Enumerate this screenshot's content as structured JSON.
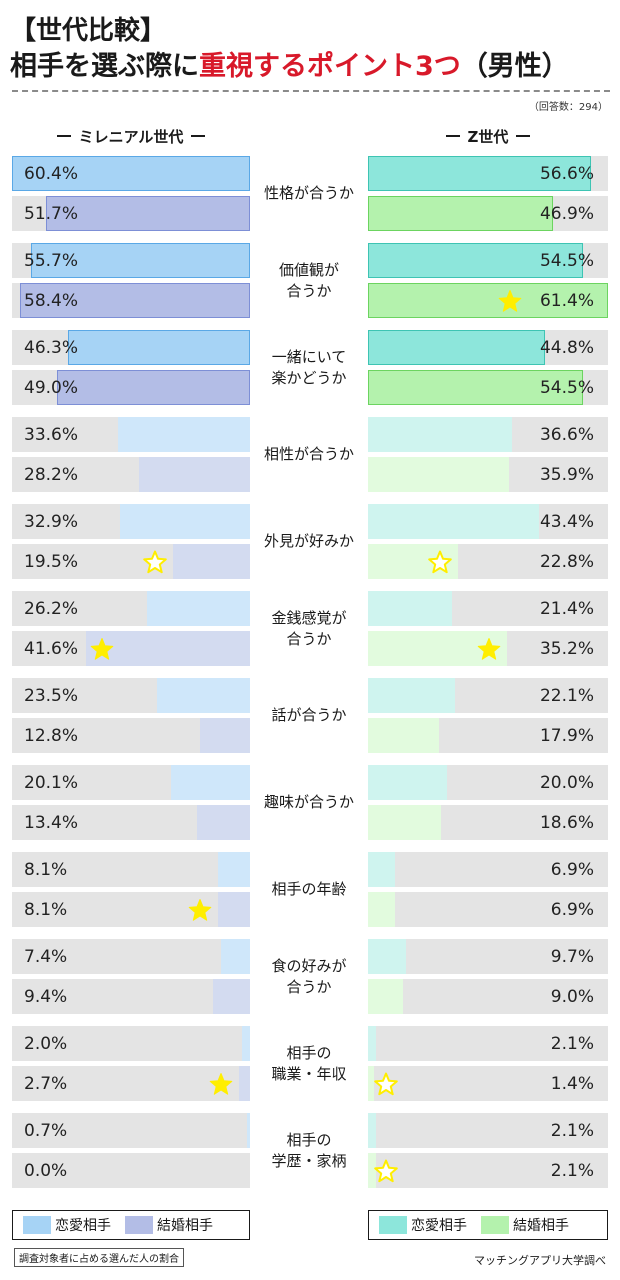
{
  "title": {
    "line1": "【世代比較】",
    "line2_prefix": "相手を選ぶ際に",
    "line2_accent": "重視するポイント3つ",
    "line2_suffix": "（男性）"
  },
  "sample_note": "（回答数：294）",
  "column_headers": {
    "left": "ミレニアル世代",
    "right": "Z世代"
  },
  "legend": {
    "left": [
      {
        "label": "恋愛相手",
        "color": "#a6d3f5"
      },
      {
        "label": "結婚相手",
        "color": "#b3bde6"
      }
    ],
    "right": [
      {
        "label": "恋愛相手",
        "color": "#8de6db"
      },
      {
        "label": "結婚相手",
        "color": "#b4f2ad"
      }
    ]
  },
  "colors": {
    "track": "#e4e4e4",
    "millennial_romance_top3": "#a6d3f5",
    "millennial_romance_other": "#cfe7fa",
    "millennial_marriage_top3": "#b3bde6",
    "millennial_marriage_other": "#d3dbf0",
    "genz_romance_top3": "#8de6db",
    "genz_romance_other": "#cff4ef",
    "genz_marriage_top3": "#b4f2ad",
    "genz_marriage_other": "#e2fbde",
    "millennial_romance_border": "#5aa8e6",
    "millennial_marriage_border": "#7d8fd6",
    "genz_romance_border": "#3ec4b3",
    "genz_marriage_border": "#6cd460",
    "star": "#ffee00"
  },
  "footnote": "調査対象者に占める選んだ人の割合",
  "source": "マッチングアプリ大学調べ",
  "chart_data": {
    "type": "bar",
    "unit": "%",
    "xlim": [
      0,
      100
    ],
    "categories": [
      "性格が合うか",
      "価値観が\n合うか",
      "一緒にいて\n楽かどうか",
      "相性が合うか",
      "外見が好みか",
      "金銭感覚が\n合うか",
      "話が合うか",
      "趣味が合うか",
      "相手の年齢",
      "食の好みが\n合うか",
      "相手の\n職業・年収",
      "相手の\n学歴・家柄"
    ],
    "series": [
      {
        "name": "恋愛相手",
        "group": "ミレニアル世代",
        "values": [
          60.4,
          55.7,
          46.3,
          33.6,
          32.9,
          26.2,
          23.5,
          20.1,
          8.1,
          7.4,
          2.0,
          0.7
        ],
        "labels": [
          "60.4%",
          "55.7%",
          "46.3%",
          "33.6%",
          "32.9%",
          "26.2%",
          "23.5%",
          "20.1%",
          "8.1%",
          "7.4%",
          "2.0%",
          "0.7%"
        ],
        "top3": [
          0,
          1,
          2
        ],
        "stars": []
      },
      {
        "name": "結婚相手",
        "group": "ミレニアル世代",
        "values": [
          51.7,
          58.4,
          49.0,
          28.2,
          19.5,
          41.6,
          12.8,
          13.4,
          8.1,
          9.4,
          2.7,
          0.0
        ],
        "labels": [
          "51.7%",
          "58.4%",
          "49.0%",
          "28.2%",
          "19.5%",
          "41.6%",
          "12.8%",
          "13.4%",
          "8.1%",
          "9.4%",
          "2.7%",
          "0.0%"
        ],
        "top3": [
          0,
          1,
          2
        ],
        "stars": [
          {
            "index": 4,
            "filled": false
          },
          {
            "index": 5,
            "filled": true
          },
          {
            "index": 8,
            "filled": true
          },
          {
            "index": 10,
            "filled": true
          }
        ]
      },
      {
        "name": "恋愛相手",
        "group": "Z世代",
        "values": [
          56.6,
          54.5,
          44.8,
          36.6,
          43.4,
          21.4,
          22.1,
          20.0,
          6.9,
          9.7,
          2.1,
          2.1
        ],
        "labels": [
          "56.6%",
          "54.5%",
          "44.8%",
          "36.6%",
          "43.4%",
          "21.4%",
          "22.1%",
          "20.0%",
          "6.9%",
          "9.7%",
          "2.1%",
          "2.1%"
        ],
        "top3": [
          0,
          1,
          2
        ],
        "stars": []
      },
      {
        "name": "結婚相手",
        "group": "Z世代",
        "values": [
          46.9,
          61.4,
          54.5,
          35.9,
          22.8,
          35.2,
          17.9,
          18.6,
          6.9,
          9.0,
          1.4,
          2.1
        ],
        "labels": [
          "46.9%",
          "61.4%",
          "54.5%",
          "35.9%",
          "22.8%",
          "35.2%",
          "17.9%",
          "18.6%",
          "6.9%",
          "9.0%",
          "1.4%",
          "2.1%"
        ],
        "top3": [
          0,
          1,
          2
        ],
        "stars": [
          {
            "index": 1,
            "filled": true
          },
          {
            "index": 4,
            "filled": false
          },
          {
            "index": 5,
            "filled": true
          },
          {
            "index": 10,
            "filled": false
          },
          {
            "index": 11,
            "filled": false
          }
        ]
      }
    ]
  }
}
